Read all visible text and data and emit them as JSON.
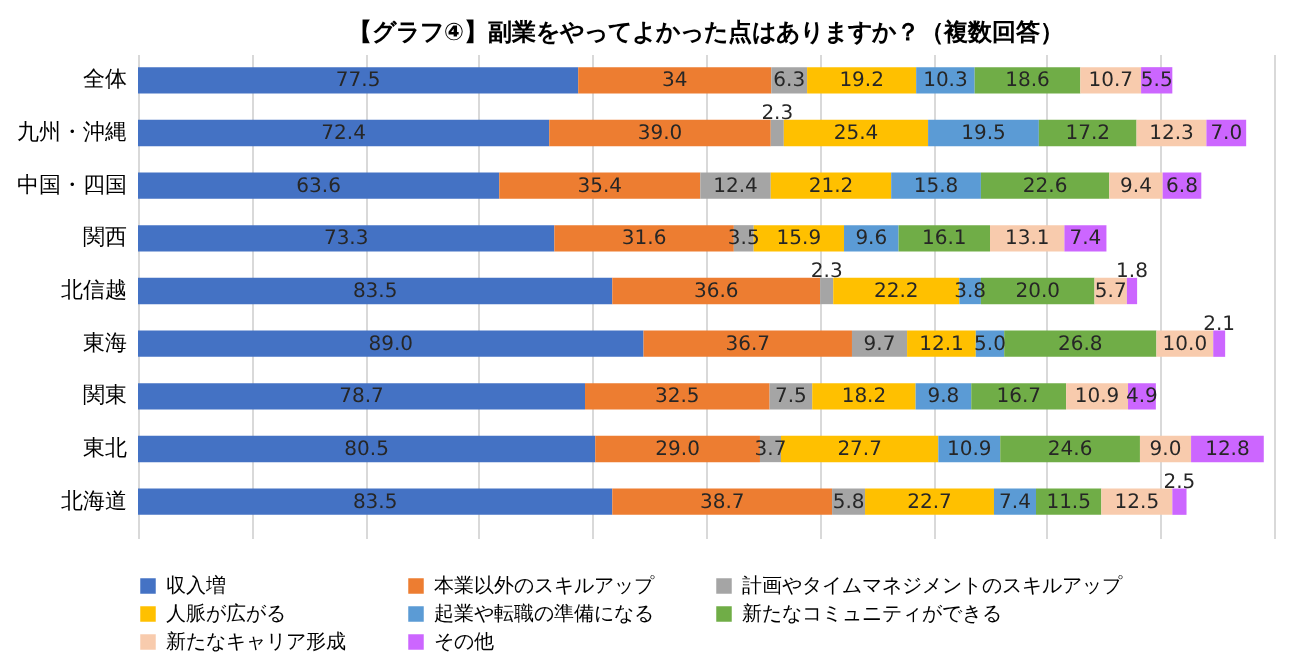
{
  "chart_data": {
    "type": "bar",
    "orientation": "horizontal",
    "stacked": true,
    "title": "【グラフ④】副業をやってよかった点はありますか？（複数回答）",
    "categories": [
      "全体",
      "九州・沖縄",
      "中国・四国",
      "関西",
      "北信越",
      "東海",
      "関東",
      "東北",
      "北海道"
    ],
    "series": [
      {
        "name": "収入増",
        "color": "#4472c4",
        "values": [
          77.5,
          72.4,
          63.6,
          73.3,
          83.5,
          89.0,
          78.7,
          80.5,
          83.5
        ],
        "value_labels": [
          "77.5",
          "72.4",
          "63.6",
          "73.3",
          "83.5",
          "89.0",
          "78.7",
          "80.5",
          "83.5"
        ]
      },
      {
        "name": "本業以外のスキルアップ",
        "color": "#ed7d31",
        "values": [
          34,
          39.0,
          35.4,
          31.6,
          36.6,
          36.7,
          32.5,
          29.0,
          38.7
        ],
        "value_labels": [
          "34",
          "39.0",
          "35.4",
          "31.6",
          "36.6",
          "36.7",
          "32.5",
          "29.0",
          "38.7"
        ]
      },
      {
        "name": "計画やタイムマネジメントのスキルアップ",
        "color": "#a5a5a5",
        "values": [
          6.3,
          2.3,
          12.4,
          3.5,
          2.3,
          9.7,
          7.5,
          3.7,
          5.8
        ],
        "value_labels": [
          "6.3",
          "2.3",
          "12.4",
          "3.5",
          "2.3",
          "9.7",
          "7.5",
          "3.7",
          "5.8"
        ]
      },
      {
        "name": "人脈が広がる",
        "color": "#ffc000",
        "values": [
          19.2,
          25.4,
          21.2,
          15.9,
          22.2,
          12.1,
          18.2,
          27.7,
          22.7
        ],
        "value_labels": [
          "19.2",
          "25.4",
          "21.2",
          "15.9",
          "22.2",
          "12.1",
          "18.2",
          "27.7",
          "22.7"
        ]
      },
      {
        "name": "起業や転職の準備になる",
        "color": "#5b9bd5",
        "values": [
          10.3,
          19.5,
          15.8,
          9.6,
          3.8,
          5.0,
          9.8,
          10.9,
          7.4
        ],
        "value_labels": [
          "10.3",
          "19.5",
          "15.8",
          "9.6",
          "3.8",
          "5.0",
          "9.8",
          "10.9",
          "7.4"
        ]
      },
      {
        "name": "新たなコミュニティができる",
        "color": "#70ad47",
        "values": [
          18.6,
          17.2,
          22.6,
          16.1,
          20.0,
          26.8,
          16.7,
          24.6,
          11.5
        ],
        "value_labels": [
          "18.6",
          "17.2",
          "22.6",
          "16.1",
          "20.0",
          "26.8",
          "16.7",
          "24.6",
          "11.5"
        ]
      },
      {
        "name": "新たなキャリア形成",
        "color": "#f8cbad",
        "values": [
          10.7,
          12.3,
          9.4,
          13.1,
          5.7,
          10.0,
          10.9,
          9.0,
          12.5
        ],
        "value_labels": [
          "10.7",
          "12.3",
          "9.4",
          "13.1",
          "5.7",
          "10.0",
          "10.9",
          "9.0",
          "12.5"
        ]
      },
      {
        "name": "その他",
        "color": "#cc66ff",
        "values": [
          5.5,
          7.0,
          6.8,
          7.4,
          1.8,
          2.1,
          4.9,
          12.8,
          2.5
        ],
        "value_labels": [
          "5.5",
          "7.0",
          "6.8",
          "7.4",
          "1.8",
          "2.1",
          "4.9",
          "12.8",
          "2.5"
        ]
      }
    ],
    "xlim": [
      0,
      200
    ],
    "xticks": [
      {
        "value": 0,
        "label": null
      },
      {
        "value": 20,
        "label": null
      },
      {
        "value": 40,
        "label": null
      },
      {
        "value": 60,
        "label": null
      },
      {
        "value": 80,
        "label": null
      },
      {
        "value": 100,
        "label": null
      },
      {
        "value": 120,
        "label": null
      },
      {
        "value": 140,
        "label": null
      },
      {
        "value": 160,
        "label": null
      },
      {
        "value": 180,
        "label": null
      },
      {
        "value": 200,
        "label": null
      }
    ],
    "tick_labels": "y",
    "grid": "x",
    "legend": "bottom"
  }
}
